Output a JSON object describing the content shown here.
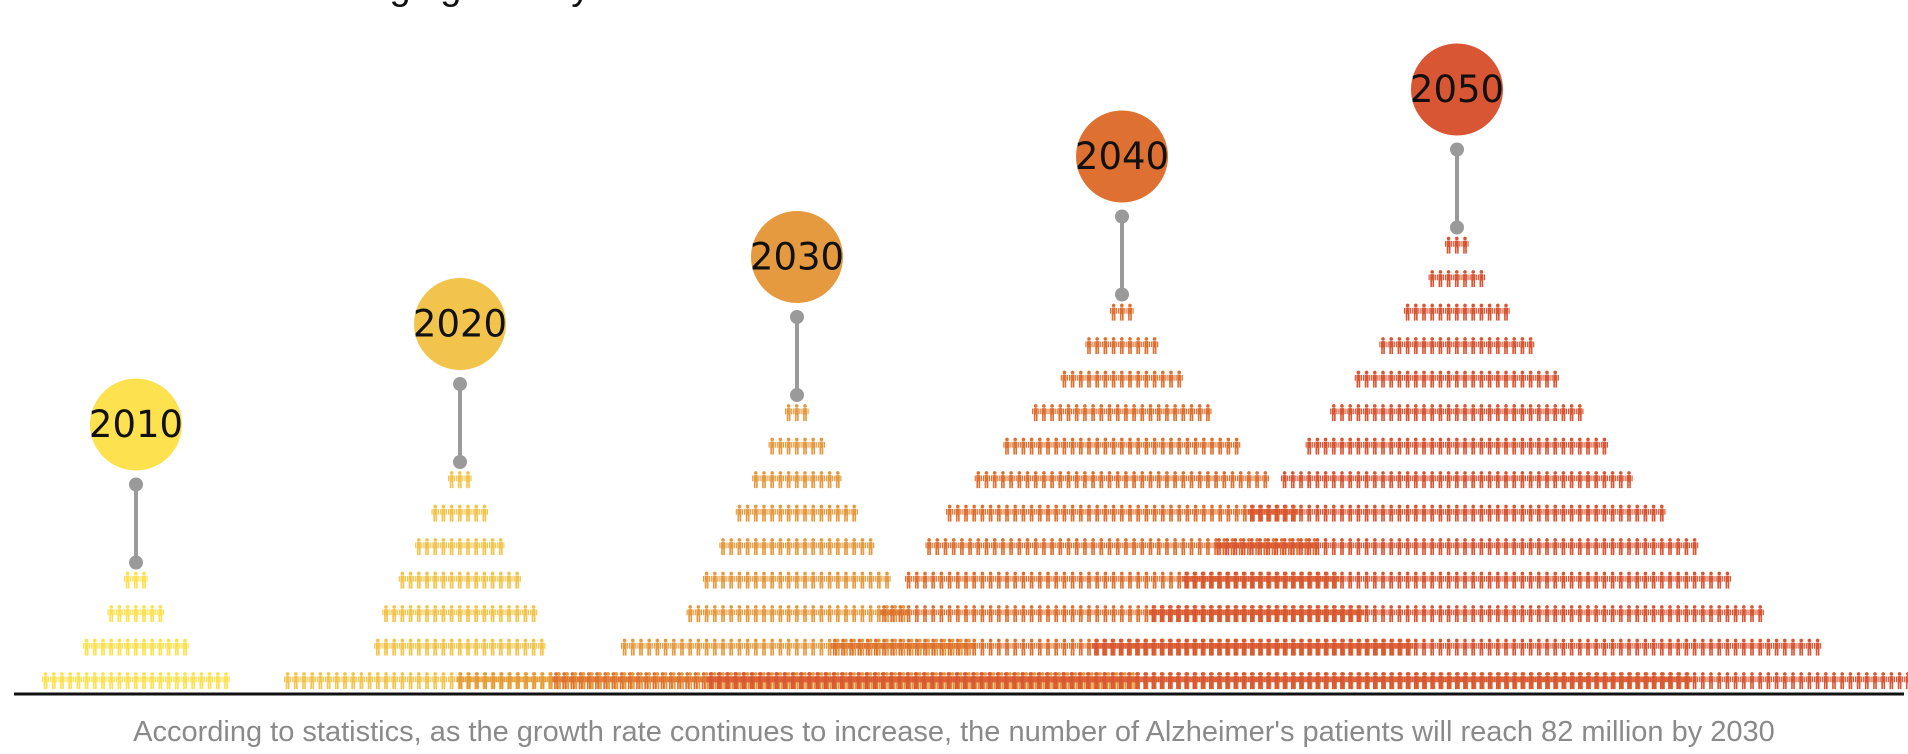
{
  "headline": "with the advent of aging society.",
  "caption": "According to statistics, as the growth rate continues to increase, the number of Alzheimer's patients will reach 82 million by 2030",
  "chart_data": {
    "type": "pictogram",
    "icon": "person-icon",
    "pointer_color": "#9a9a9a",
    "axis_color": "#111111",
    "categories": [
      "2010",
      "2020",
      "2030",
      "2040",
      "2050"
    ],
    "series": [
      {
        "year": "2010",
        "color": "#fde14e",
        "rows": [
          23,
          13,
          7,
          3
        ]
      },
      {
        "year": "2020",
        "color": "#f2c44b",
        "rows": [
          43,
          21,
          19,
          15,
          11,
          7,
          3
        ]
      },
      {
        "year": "2030",
        "color": "#e59a40",
        "rows": [
          83,
          43,
          27,
          23,
          19,
          15,
          11,
          7,
          3
        ]
      },
      {
        "year": "2040",
        "color": "#de7132",
        "rows": [
          139,
          71,
          59,
          53,
          48,
          43,
          36,
          29,
          22,
          15,
          9,
          3
        ]
      },
      {
        "year": "2050",
        "color": "#d95635",
        "rows": [
          183,
          89,
          75,
          67,
          59,
          51,
          43,
          37,
          31,
          25,
          19,
          13,
          7,
          3
        ]
      }
    ]
  }
}
